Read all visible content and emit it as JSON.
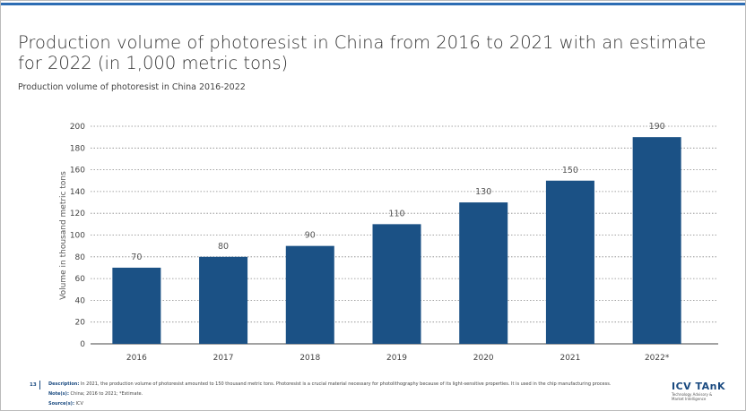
{
  "chart_data": {
    "type": "bar",
    "title": "Production volume of photoresist in China from 2016 to 2021 with an estimate for 2022 (in 1,000 metric tons)",
    "subtitle": "Production volume of photoresist in China 2016-2022",
    "y_label": "Volume in thousand metric tons",
    "categories": [
      "2016",
      "2017",
      "2018",
      "2019",
      "2020",
      "2021",
      "2022*"
    ],
    "values": [
      70,
      80,
      90,
      110,
      130,
      150,
      190
    ],
    "color": "#1b5185",
    "ylim": [
      0,
      200
    ],
    "yticks": [
      0,
      20,
      40,
      60,
      80,
      100,
      120,
      140,
      160,
      180,
      200
    ],
    "grid": true
  },
  "footer": {
    "page_number": "13",
    "description_label": "Description:",
    "description": "In 2021, the production volume of photoresist amounted to 150 thousand metric tons. Photoresist is a crucial material necessary for photolithography because of its light-sensitive properties. It is used in the chip manufacturing process.",
    "note_label": "Note(s):",
    "note": "China; 2016 to 2021; *Estimate.",
    "source_label": "Source(s):",
    "source": "ICV"
  },
  "logo": {
    "name": "ICV TAnK",
    "tagline": "Technology Advisory & Market Intelligence"
  }
}
